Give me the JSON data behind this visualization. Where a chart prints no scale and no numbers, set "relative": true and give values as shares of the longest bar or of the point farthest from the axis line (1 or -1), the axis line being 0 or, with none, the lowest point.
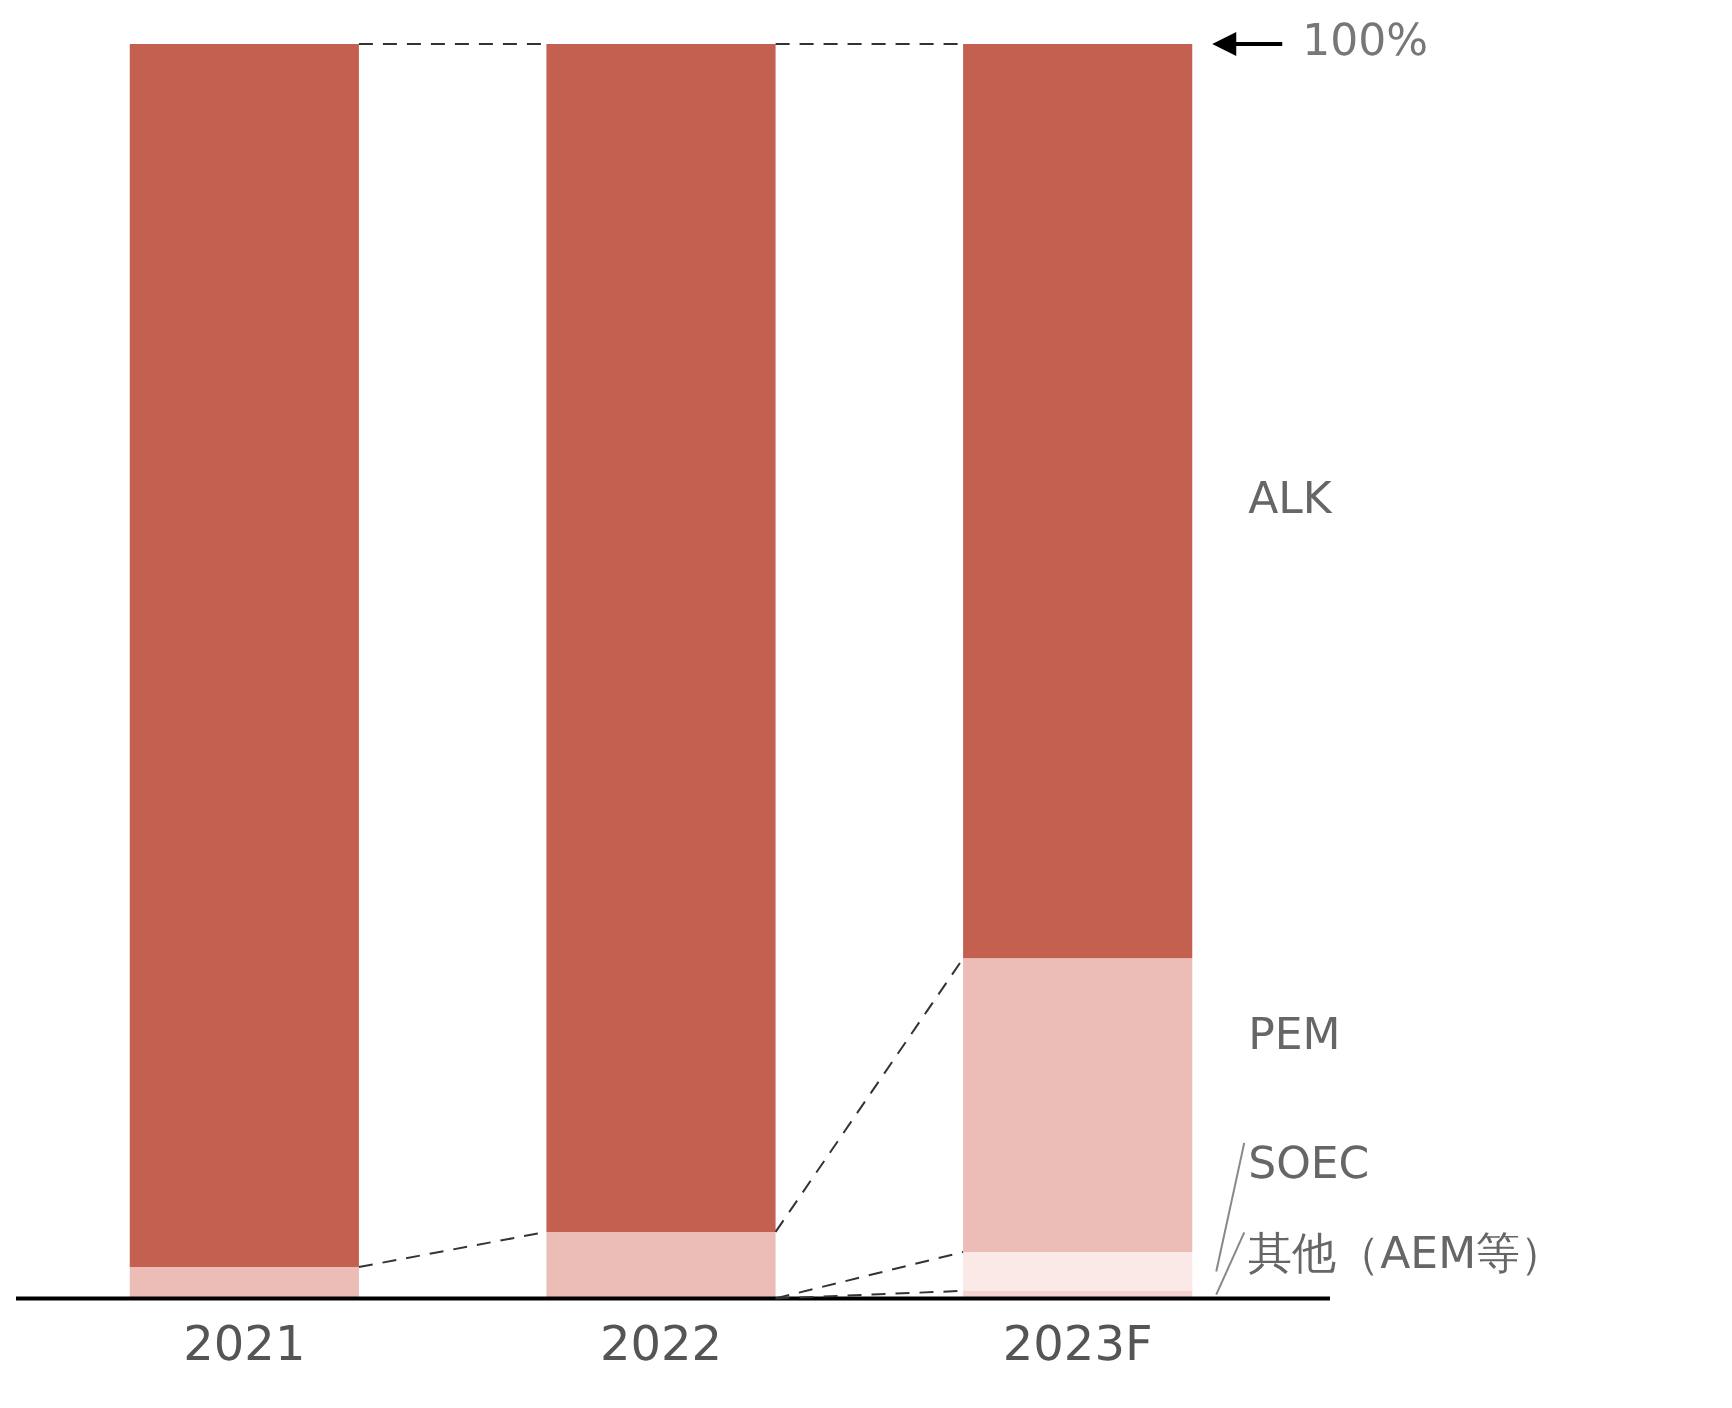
{
  "chart_data": {
    "type": "bar",
    "stacked": true,
    "relative": true,
    "categories": [
      "2021",
      "2022",
      "2023F"
    ],
    "series": [
      {
        "name": "其他（AEM等）",
        "color": "#f4d4cf",
        "values": [
          0,
          0,
          0.006
        ]
      },
      {
        "name": "SOEC",
        "color": "#fae9e6",
        "values": [
          0,
          0,
          0.031
        ]
      },
      {
        "name": "PEM",
        "color": "#ecbdb6",
        "values": [
          0.025,
          0.053,
          0.234
        ]
      },
      {
        "name": "ALK",
        "color": "#c46050",
        "values": [
          0.975,
          0.947,
          0.729
        ]
      }
    ],
    "annotations": [
      "100%"
    ],
    "grid": false,
    "legend": false
  }
}
